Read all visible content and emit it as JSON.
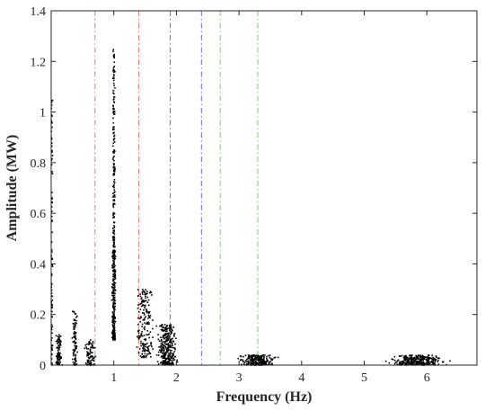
{
  "chart_data": {
    "type": "scatter",
    "title": "",
    "xlabel": "Frequency (Hz)",
    "ylabel": "Amplitude (MW)",
    "xlim": [
      0,
      6.8
    ],
    "ylim": [
      0,
      1.4
    ],
    "xticks": [
      "1",
      "2",
      "3",
      "4",
      "5",
      "6"
    ],
    "yticks": [
      "0",
      "0.2",
      "0.4",
      "0.6",
      "0.8",
      "1",
      "1.2",
      "1.4"
    ],
    "grid": false,
    "legend": "none",
    "reference_lines": [
      {
        "x": 0.7,
        "color": "#e8786e",
        "style": "dash-dot"
      },
      {
        "x": 1.4,
        "color": "#e8786e",
        "style": "dash-dot"
      },
      {
        "x": 1.9,
        "color": "#6a6ae8",
        "style": "dash-dot"
      },
      {
        "x": 2.4,
        "color": "#6a6ae8",
        "style": "dash-dot"
      },
      {
        "x": 2.7,
        "color": "#6ad86a",
        "style": "dash-dot"
      },
      {
        "x": 3.3,
        "color": "#6ad86a",
        "style": "dash-dot"
      }
    ],
    "clusters": [
      {
        "x_center": 0.01,
        "x_spread": 0.02,
        "y_min": 0.0,
        "y_max": 1.05,
        "count": 90
      },
      {
        "x_center": 0.12,
        "x_spread": 0.06,
        "y_min": 0.0,
        "y_max": 0.12,
        "count": 80
      },
      {
        "x_center": 0.38,
        "x_spread": 0.05,
        "y_min": 0.0,
        "y_max": 0.22,
        "count": 90
      },
      {
        "x_center": 0.62,
        "x_spread": 0.1,
        "y_min": 0.0,
        "y_max": 0.1,
        "count": 90
      },
      {
        "x_center": 1.0,
        "x_spread": 0.04,
        "y_min": 0.1,
        "y_max": 0.45,
        "count": 260
      },
      {
        "x_center": 1.0,
        "x_spread": 0.025,
        "y_min": 0.45,
        "y_max": 1.25,
        "count": 180
      },
      {
        "x_center": 1.5,
        "x_spread": 0.18,
        "y_min": 0.03,
        "y_max": 0.3,
        "count": 180
      },
      {
        "x_center": 1.85,
        "x_spread": 0.2,
        "y_min": 0.0,
        "y_max": 0.16,
        "count": 320
      },
      {
        "x_center": 3.3,
        "x_spread": 0.35,
        "y_min": 0.0,
        "y_max": 0.04,
        "count": 260
      },
      {
        "x_center": 5.85,
        "x_spread": 0.55,
        "y_min": 0.0,
        "y_max": 0.04,
        "count": 320
      }
    ],
    "point_color": "#000000",
    "axis_color": "#262626"
  }
}
